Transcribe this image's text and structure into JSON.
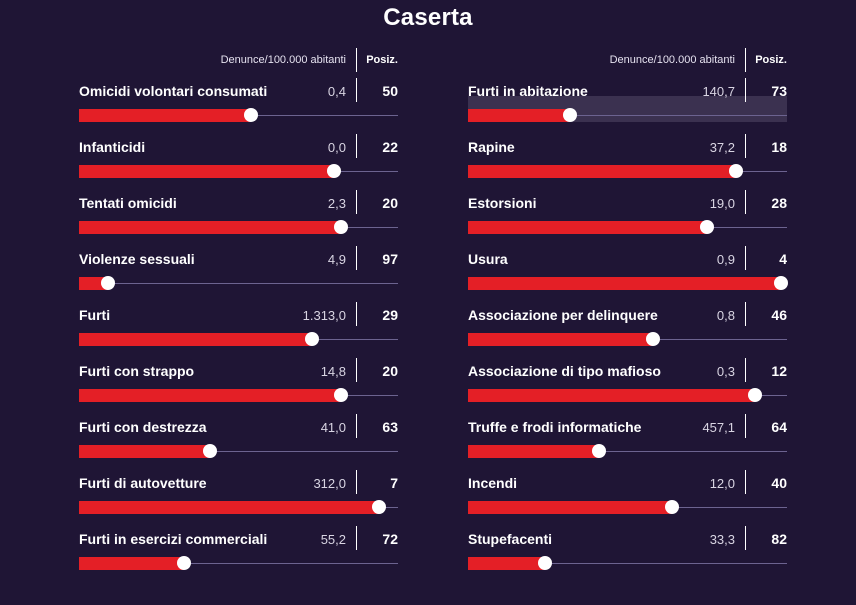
{
  "title": "Caserta",
  "header": {
    "denunce_label": "Denunce/100.000 abitanti",
    "posiz_label": "Posiz."
  },
  "colors": {
    "background": "#1f1535",
    "bar": "#e41f26",
    "track": "#6c6390",
    "highlight": "#3b3150"
  },
  "chart_data": {
    "type": "bar",
    "title": "Caserta",
    "value_label": "Denunce/100.000 abitanti",
    "rank_label": "Posiz.",
    "bar_scale": "bar length = relative standing (fraction of full width)",
    "columns": [
      {
        "rows": [
          {
            "label": "Omicidi volontari consumati",
            "value": "0,4",
            "rank": "50",
            "level": 0.54
          },
          {
            "label": "Infanticidi",
            "value": "0,0",
            "rank": "22",
            "level": 0.8
          },
          {
            "label": "Tentati omicidi",
            "value": "2,3",
            "rank": "20",
            "level": 0.82
          },
          {
            "label": "Violenze sessuali",
            "value": "4,9",
            "rank": "97",
            "level": 0.09
          },
          {
            "label": "Furti",
            "value": "1.313,0",
            "rank": "29",
            "level": 0.73
          },
          {
            "label": "Furti con strappo",
            "value": "14,8",
            "rank": "20",
            "level": 0.82
          },
          {
            "label": "Furti con destrezza",
            "value": "41,0",
            "rank": "63",
            "level": 0.41
          },
          {
            "label": "Furti di autovetture",
            "value": "312,0",
            "rank": "7",
            "level": 0.94
          },
          {
            "label": "Furti in esercizi commerciali",
            "value": "55,2",
            "rank": "72",
            "level": 0.33
          }
        ]
      },
      {
        "rows": [
          {
            "label": "Furti in abitazione",
            "value": "140,7",
            "rank": "73",
            "level": 0.32,
            "highlight": true
          },
          {
            "label": "Rapine",
            "value": "37,2",
            "rank": "18",
            "level": 0.84
          },
          {
            "label": "Estorsioni",
            "value": "19,0",
            "rank": "28",
            "level": 0.75
          },
          {
            "label": "Usura",
            "value": "0,9",
            "rank": "4",
            "level": 0.98
          },
          {
            "label": "Associazione per delinquere",
            "value": "0,8",
            "rank": "46",
            "level": 0.58
          },
          {
            "label": "Associazione di tipo mafioso",
            "value": "0,3",
            "rank": "12",
            "level": 0.9
          },
          {
            "label": "Truffe e frodi informatiche",
            "value": "457,1",
            "rank": "64",
            "level": 0.41
          },
          {
            "label": "Incendi",
            "value": "12,0",
            "rank": "40",
            "level": 0.64
          },
          {
            "label": "Stupefacenti",
            "value": "33,3",
            "rank": "82",
            "level": 0.24
          }
        ]
      }
    ]
  }
}
